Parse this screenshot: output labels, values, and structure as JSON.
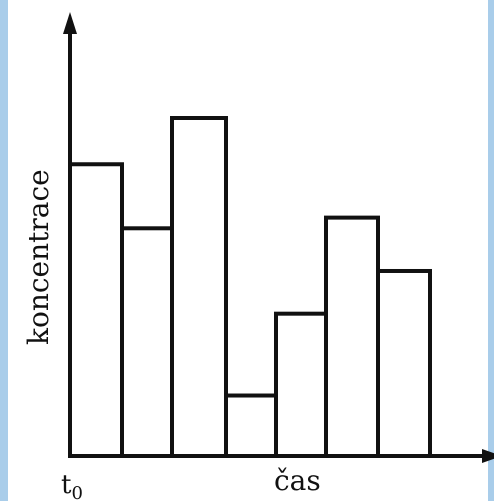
{
  "chart_data": {
    "type": "bar",
    "ylabel": "koncentrace",
    "xlabel": "čas",
    "x_origin_label": "t",
    "x_origin_subscript": "0",
    "values": [
      0.82,
      0.64,
      0.95,
      0.17,
      0.4,
      0.67,
      0.52
    ],
    "ylim": [
      0,
      1
    ],
    "grid": false,
    "bar_fill": "#ffffff",
    "bar_stroke": "#111111"
  }
}
